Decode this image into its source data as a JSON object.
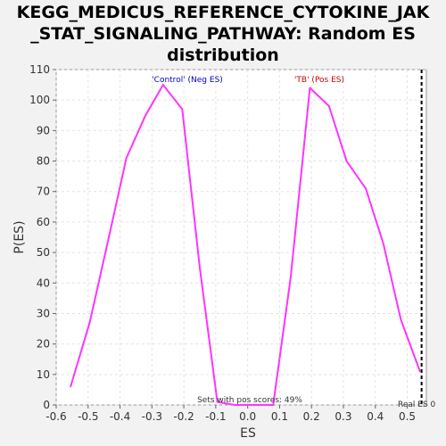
{
  "chart_data": {
    "type": "line",
    "title_lines": [
      "KEGG_MEDICUS_REFERENCE_CYTOKINE_JAK",
      "_STAT_SIGNALING_PATHWAY: Random ES",
      "distribution"
    ],
    "xlabel": "ES",
    "ylabel": "P(ES)",
    "xlim": [
      -0.6,
      0.56
    ],
    "ylim": [
      0,
      110
    ],
    "xticks": [
      -0.6,
      -0.5,
      -0.4,
      -0.3,
      -0.2,
      -0.1,
      0.0,
      0.1,
      0.2,
      0.3,
      0.4,
      0.5
    ],
    "xtick_labels": [
      "-0.6",
      "-0.5",
      "-0.4",
      "-0.3",
      "-0.2",
      "-0.1",
      "0.0",
      "0.1",
      "0.2",
      "0.3",
      "0.4",
      "0.5"
    ],
    "yticks": [
      0,
      10,
      20,
      30,
      40,
      50,
      60,
      70,
      80,
      90,
      100,
      110
    ],
    "ytick_labels": [
      "0",
      "10",
      "20",
      "30",
      "40",
      "50",
      "60",
      "70",
      "80",
      "90",
      "100",
      "110"
    ],
    "grid": true,
    "series": [
      {
        "color": "#ff33ff",
        "x": [
          -0.555,
          -0.495,
          -0.435,
          -0.38,
          -0.32,
          -0.265,
          -0.205,
          -0.15,
          -0.095,
          -0.04,
          0.02,
          0.08,
          0.135,
          0.195,
          0.255,
          0.31,
          0.37,
          0.425,
          0.48,
          0.54
        ],
        "y": [
          6,
          27,
          55,
          81,
          95,
          105,
          97,
          45,
          1,
          0,
          0,
          0,
          42,
          104,
          98,
          80,
          71,
          53,
          28,
          11
        ]
      }
    ],
    "annotations": {
      "neg_label": "'Control' (Neg ES)",
      "pos_label": "'TB' (Pos ES)",
      "sets_label": "Sets with pos scores: 49%",
      "real_es_label": "Real ES 0",
      "real_es_value": 0.545,
      "neg_color": "#0000cc",
      "pos_color": "#cc0000"
    }
  }
}
